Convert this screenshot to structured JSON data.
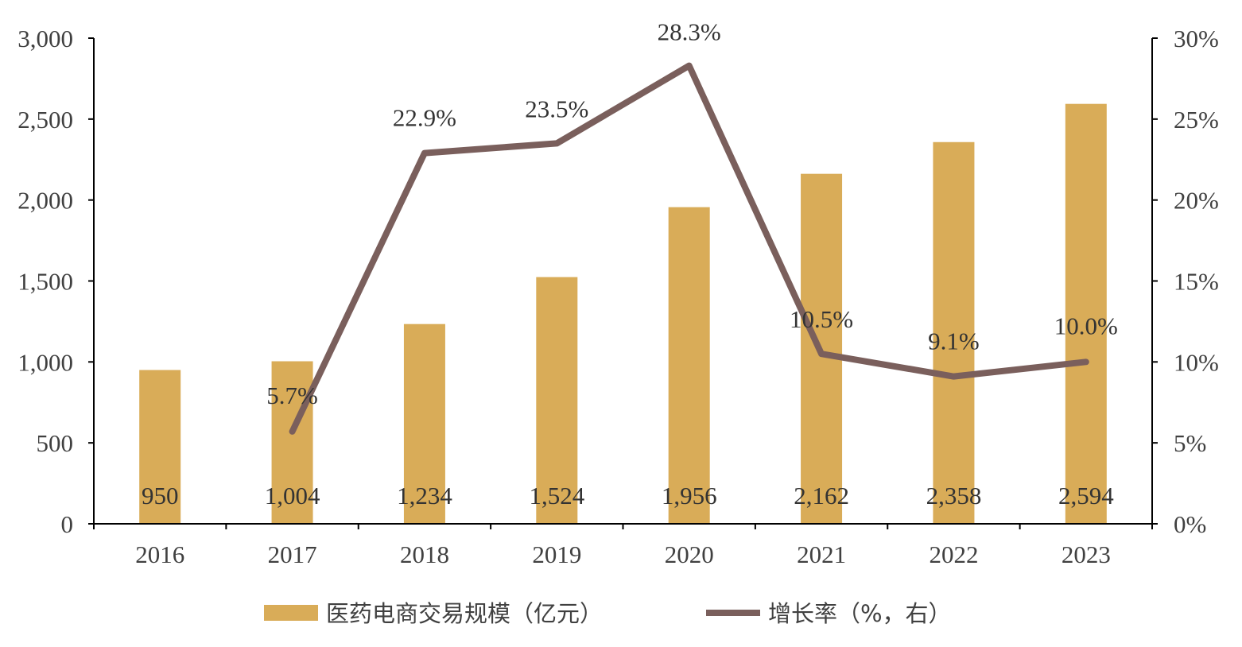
{
  "chart_data": {
    "type": "bar",
    "categories": [
      "2016",
      "2017",
      "2018",
      "2019",
      "2020",
      "2021",
      "2022",
      "2023"
    ],
    "series": [
      {
        "name": "医药电商交易规模（亿元）",
        "type": "bar",
        "axis": "left",
        "values": [
          950,
          1004,
          1234,
          1524,
          1956,
          2162,
          2358,
          2594
        ],
        "labels": [
          "950",
          "1,004",
          "1,234",
          "1,524",
          "1,956",
          "2,162",
          "2,358",
          "2,594"
        ],
        "color": "#D9AC58"
      },
      {
        "name": "增长率（%，右）",
        "type": "line",
        "axis": "right",
        "values": [
          null,
          5.7,
          22.9,
          23.5,
          28.3,
          10.5,
          9.1,
          10.0
        ],
        "labels": [
          "",
          "5.7%",
          "22.9%",
          "23.5%",
          "28.3%",
          "10.5%",
          "9.1%",
          "10.0%"
        ],
        "color": "#7A5F5C"
      }
    ],
    "y_left": {
      "range": [
        0,
        3000
      ],
      "ticks": [
        "0",
        "500",
        "1,000",
        "1,500",
        "2,000",
        "2,500",
        "3,000"
      ]
    },
    "y_right": {
      "range": [
        0,
        30
      ],
      "ticks": [
        "0%",
        "5%",
        "10%",
        "15%",
        "20%",
        "25%",
        "30%"
      ]
    },
    "grid": false,
    "legend": "bottom"
  }
}
